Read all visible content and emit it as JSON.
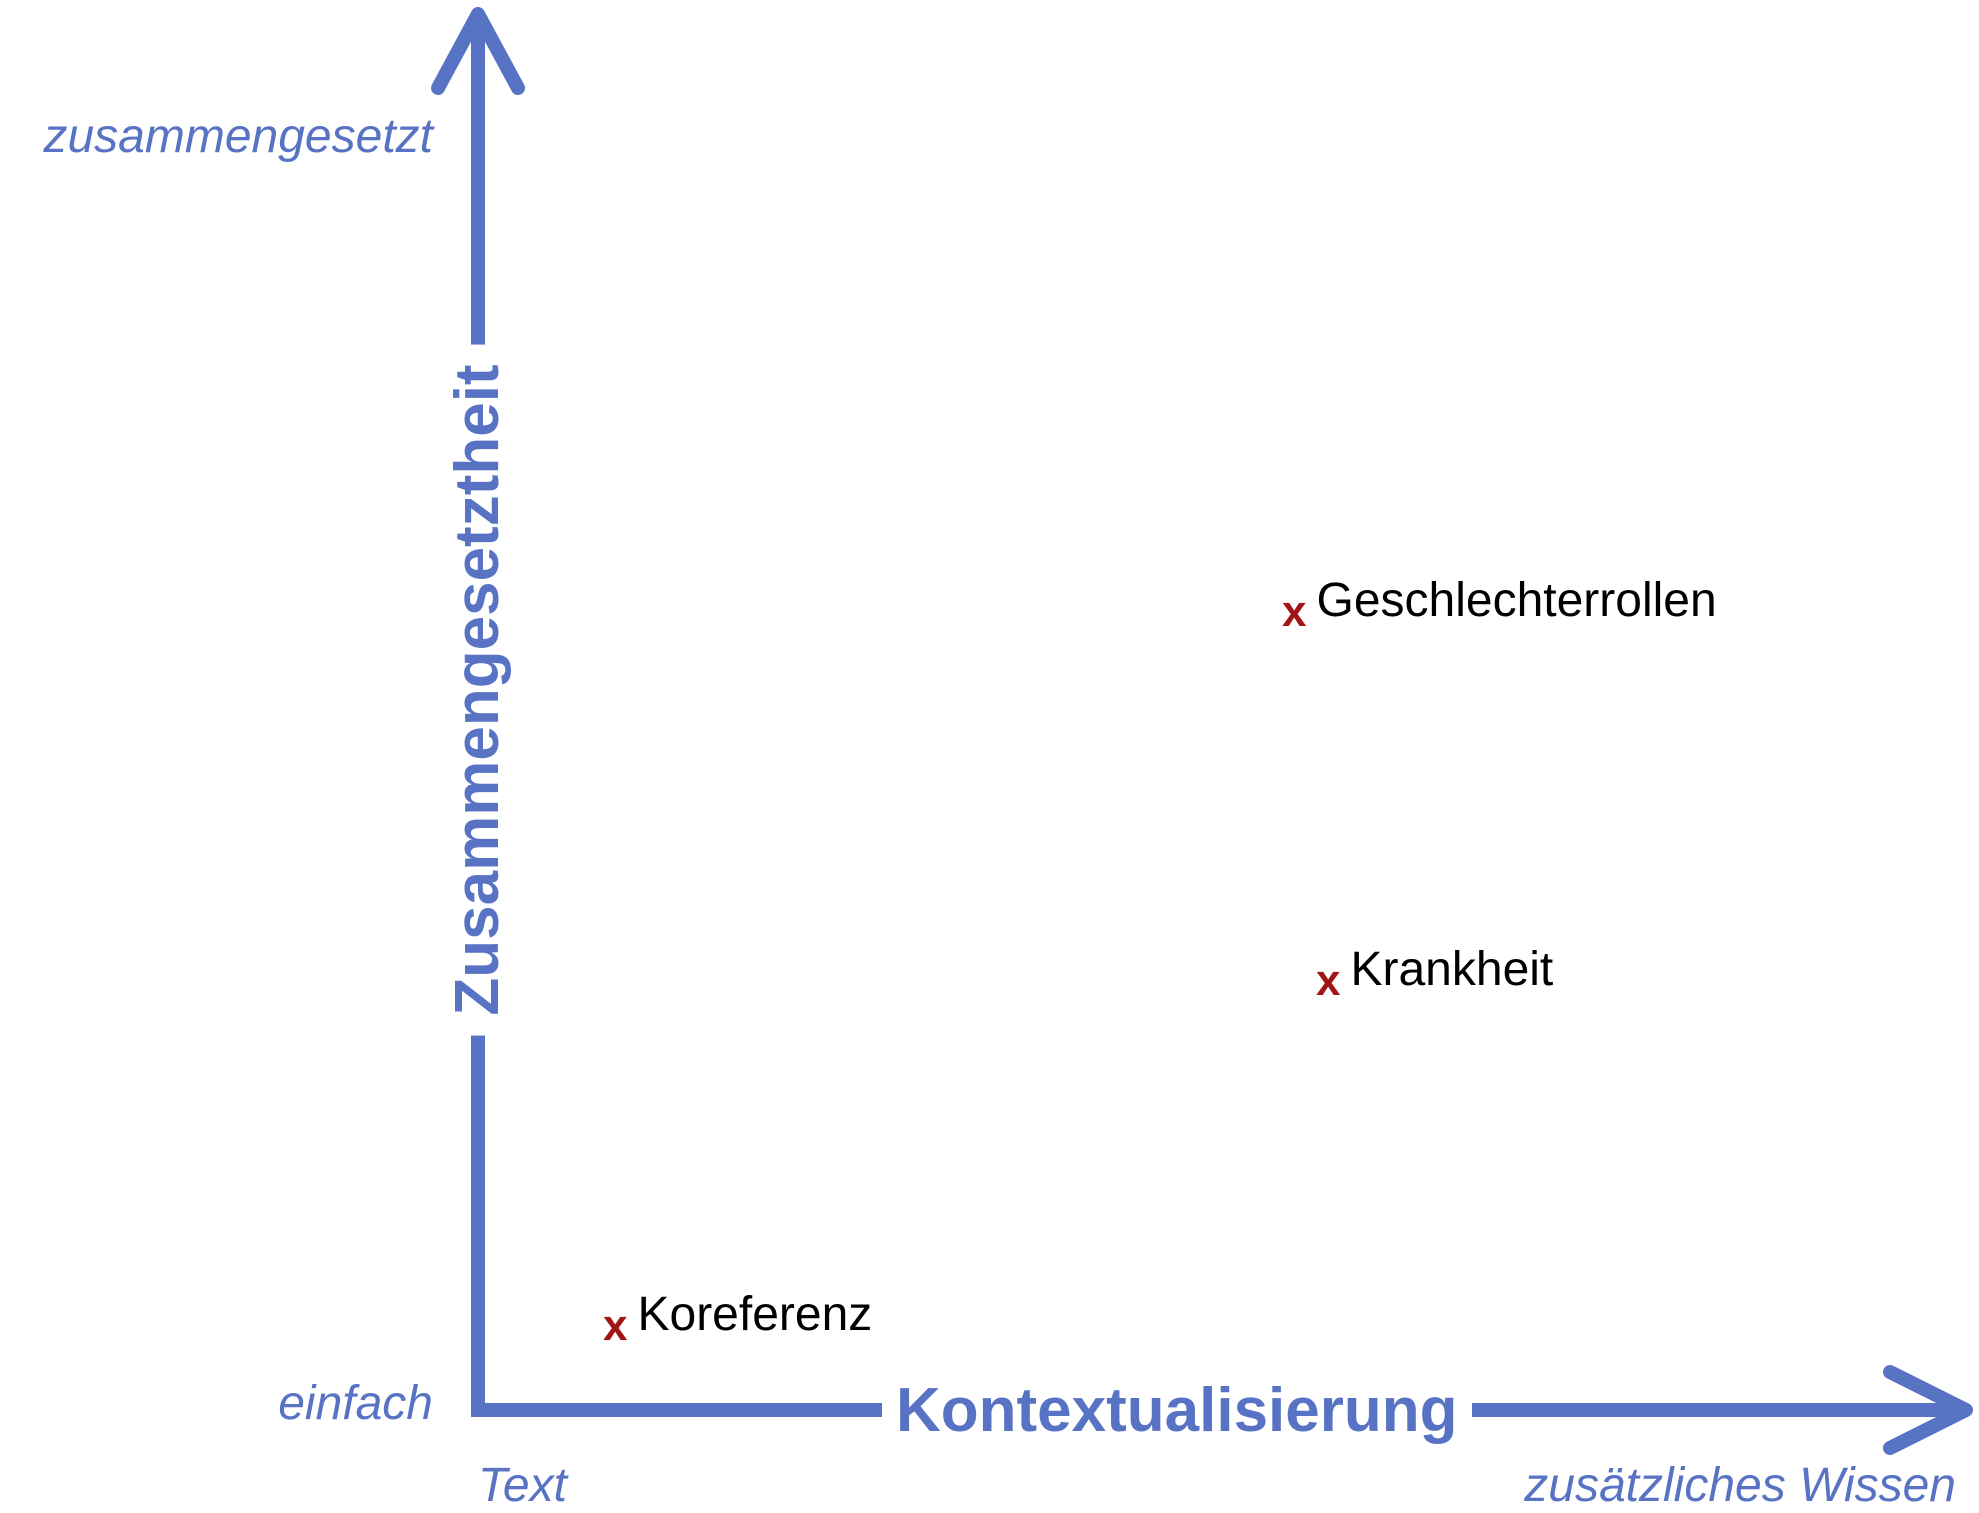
{
  "colors": {
    "axis": "#5873c4",
    "marker": "#a31515",
    "item_text": "#000000",
    "background": "#ffffff"
  },
  "y_axis": {
    "title": "Zusammengesetztheit",
    "high_label": "zusammengesetzt",
    "low_label": "einfach"
  },
  "x_axis": {
    "title": "Kontextualisierung",
    "low_label": "Text",
    "high_label": "zusätzliches Wissen"
  },
  "items": [
    {
      "marker": "x",
      "label": "Geschlechterrollen"
    },
    {
      "marker": "x",
      "label": "Krankheit"
    },
    {
      "marker": "x",
      "label": "Koreferenz"
    }
  ]
}
